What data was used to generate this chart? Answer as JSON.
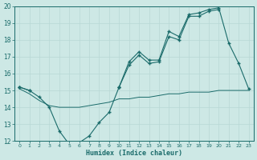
{
  "xlabel": "Humidex (Indice chaleur)",
  "x": [
    0,
    1,
    2,
    3,
    4,
    5,
    6,
    7,
    8,
    9,
    10,
    11,
    12,
    13,
    14,
    15,
    16,
    17,
    18,
    19,
    20,
    21,
    22,
    23
  ],
  "line1": [
    15.2,
    15.0,
    null,
    null,
    null,
    null,
    null,
    null,
    null,
    null,
    15.2,
    16.7,
    17.3,
    16.8,
    16.8,
    18.5,
    18.2,
    19.5,
    19.6,
    19.8,
    19.9,
    17.8,
    16.6,
    15.1
  ],
  "line2": [
    15.2,
    null,
    null,
    null,
    null,
    null,
    null,
    null,
    null,
    null,
    15.2,
    16.5,
    17.1,
    16.6,
    16.7,
    18.2,
    18.0,
    19.4,
    19.4,
    19.7,
    19.8,
    null,
    null,
    null
  ],
  "line3": [
    15.2,
    15.0,
    14.6,
    14.0,
    12.6,
    11.8,
    11.9,
    12.3,
    13.1,
    13.7,
    15.2,
    null,
    null,
    null,
    null,
    null,
    null,
    null,
    null,
    null,
    null,
    null,
    null,
    null
  ],
  "line4": [
    15.1,
    14.8,
    14.4,
    14.1,
    14.0,
    14.0,
    14.0,
    14.1,
    14.2,
    14.3,
    14.5,
    14.5,
    14.6,
    14.6,
    14.7,
    14.8,
    14.8,
    14.9,
    14.9,
    14.9,
    15.0,
    15.0,
    15.0,
    15.0
  ],
  "bg_color": "#cde8e5",
  "line_color": "#1a6b6a",
  "grid_color": "#b8d8d5",
  "ylim": [
    12,
    20
  ],
  "xlim": [
    -0.5,
    23.5
  ],
  "yticks": [
    12,
    13,
    14,
    15,
    16,
    17,
    18,
    19,
    20
  ],
  "xticks": [
    0,
    1,
    2,
    3,
    4,
    5,
    6,
    7,
    8,
    9,
    10,
    11,
    12,
    13,
    14,
    15,
    16,
    17,
    18,
    19,
    20,
    21,
    22,
    23
  ],
  "figwidth": 3.2,
  "figheight": 2.0,
  "dpi": 100
}
